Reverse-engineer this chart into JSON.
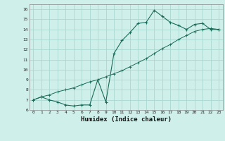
{
  "xlabel": "Humidex (Indice chaleur)",
  "bg_color": "#cff0ea",
  "grid_color": "#aad8d0",
  "line_color": "#1a6b5a",
  "xlim": [
    -0.5,
    23.5
  ],
  "ylim": [
    6,
    16.5
  ],
  "xticks": [
    0,
    1,
    2,
    3,
    4,
    5,
    6,
    7,
    8,
    9,
    10,
    11,
    12,
    13,
    14,
    15,
    16,
    17,
    18,
    19,
    20,
    21,
    22,
    23
  ],
  "yticks": [
    6,
    7,
    8,
    9,
    10,
    11,
    12,
    13,
    14,
    15,
    16
  ],
  "line1_x": [
    0,
    1,
    2,
    3,
    4,
    5,
    6,
    7,
    8,
    9,
    10,
    11,
    12,
    13,
    14,
    15,
    16,
    17,
    18,
    19,
    20,
    21,
    22,
    23
  ],
  "line1_y": [
    7.0,
    7.3,
    7.0,
    6.8,
    6.5,
    6.4,
    6.5,
    6.5,
    9.0,
    6.8,
    11.6,
    12.9,
    13.7,
    14.6,
    14.7,
    15.9,
    15.3,
    14.7,
    14.4,
    14.0,
    14.5,
    14.6,
    14.0,
    14.0
  ],
  "line2_x": [
    0,
    1,
    2,
    3,
    4,
    5,
    6,
    7,
    8,
    9,
    10,
    11,
    12,
    13,
    14,
    15,
    16,
    17,
    18,
    19,
    20,
    21,
    22,
    23
  ],
  "line2_y": [
    7.0,
    7.3,
    7.5,
    7.8,
    8.0,
    8.2,
    8.5,
    8.8,
    9.0,
    9.3,
    9.6,
    9.9,
    10.3,
    10.7,
    11.1,
    11.6,
    12.1,
    12.5,
    13.0,
    13.4,
    13.8,
    14.0,
    14.1,
    14.0
  ]
}
